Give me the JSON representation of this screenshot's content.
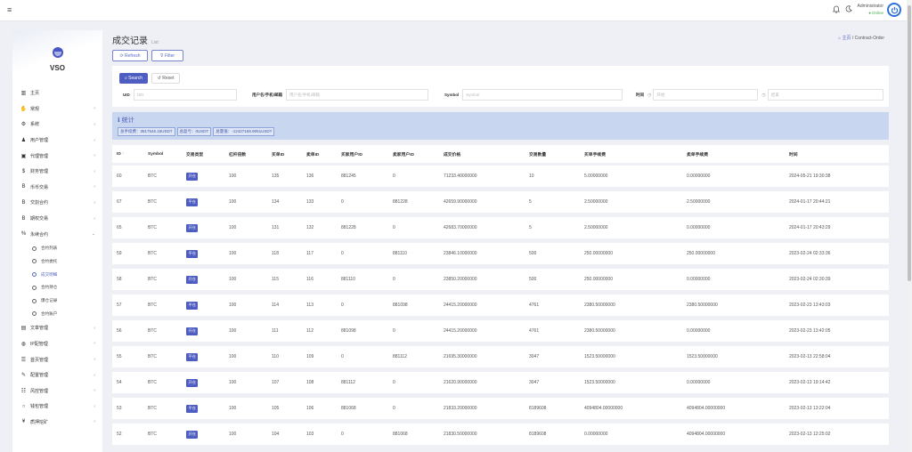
{
  "topbar": {
    "menu_icon": "menu-icon",
    "notifications_icon": "bell-icon",
    "theme_icon": "moon-icon",
    "user_name": "Administrator",
    "user_status": "Online",
    "avatar_icon": "power-icon"
  },
  "sidebar": {
    "logo_text": "VSO",
    "items": [
      {
        "label": "主页",
        "icon": "bar-chart-icon",
        "has_arrow": false
      },
      {
        "label": "常规",
        "icon": "handshake-icon",
        "has_arrow": true
      },
      {
        "label": "系统",
        "icon": "gear-icon",
        "has_arrow": true
      },
      {
        "label": "用户管理",
        "icon": "user-icon",
        "has_arrow": true
      },
      {
        "label": "代理管理",
        "icon": "id-card-icon",
        "has_arrow": true
      },
      {
        "label": "财务管理",
        "icon": "dollar-icon",
        "has_arrow": true
      },
      {
        "label": "币币交易",
        "icon": "bitcoin-icon",
        "has_arrow": true
      },
      {
        "label": "交割合约",
        "icon": "bitcoin-icon",
        "has_arrow": true
      },
      {
        "label": "期权交易",
        "icon": "bitcoin-icon",
        "has_arrow": true
      },
      {
        "label": "永续合约",
        "icon": "percent-icon",
        "has_arrow": true,
        "expanded": true
      }
    ],
    "subitems": [
      {
        "label": "合约列表",
        "active": false
      },
      {
        "label": "合约委托",
        "active": false
      },
      {
        "label": "成交明细",
        "active": true
      },
      {
        "label": "合约持仓",
        "active": false
      },
      {
        "label": "爆仓记录",
        "active": false
      },
      {
        "label": "合约账户",
        "active": false
      }
    ],
    "items_after": [
      {
        "label": "文章管理",
        "icon": "newspaper-icon",
        "has_arrow": true
      },
      {
        "label": "IP配管理",
        "icon": "globe-icon",
        "has_arrow": true
      },
      {
        "label": "首页管理",
        "icon": "list-icon",
        "has_arrow": true
      },
      {
        "label": "配置管理",
        "icon": "wrench-icon",
        "has_arrow": true
      },
      {
        "label": "风控管理",
        "icon": "sliders-icon",
        "has_arrow": true
      },
      {
        "label": "钱包管理",
        "icon": "circle-icon",
        "has_arrow": true
      },
      {
        "label": "质押挖矿",
        "icon": "yen-icon",
        "has_arrow": true
      }
    ]
  },
  "page": {
    "title": "成交记录",
    "subtitle": "List",
    "breadcrumb_home": "主页",
    "breadcrumb_separator": "/",
    "breadcrumb_current": "Contract-Order",
    "refresh_label": "Refresh",
    "filter_label": "Filter"
  },
  "search": {
    "search_label": "Search",
    "reset_label": "Reset",
    "fields": [
      {
        "label": "UID",
        "placeholder": "UID"
      },
      {
        "label": "用户名/手机/邮箱",
        "placeholder": "用户名/手机/邮箱"
      },
      {
        "label": "Symbol",
        "placeholder": "Symbol"
      },
      {
        "label": "时间",
        "placeholder": "开始",
        "placeholder_end": "结束"
      }
    ]
  },
  "stats": {
    "title": "统计",
    "items": [
      "总手续费：3817546.15USDT",
      "总盈亏：0USDT",
      "总量值：-12427168.9051USDT"
    ]
  },
  "table": {
    "columns": [
      "ID",
      "Symbol",
      "交易类型",
      "杠杆倍数",
      "买单ID",
      "卖单ID",
      "买家用户ID",
      "卖家用户ID",
      "成交价格",
      "交易数量",
      "买单手续费",
      "卖单手续费",
      "时间"
    ],
    "sort_indicator": "↑",
    "rows": [
      [
        "60",
        "BTC",
        "开仓",
        "100",
        "135",
        "136",
        "881245",
        "0",
        "71233.40000000",
        "10",
        "5.00000000",
        "0.00000000",
        "2024-05-21 19:30:38"
      ],
      [
        "67",
        "BTC",
        "平仓",
        "100",
        "134",
        "133",
        "0",
        "881228",
        "42659.90000000",
        "5",
        "2.50000000",
        "2.50000000",
        "2024-01-17 20:44:21"
      ],
      [
        "65",
        "BTC",
        "开仓",
        "100",
        "131",
        "132",
        "881228",
        "0",
        "42683.70000000",
        "5",
        "2.50000000",
        "0.00000000",
        "2024-01-17 20:43:29"
      ],
      [
        "59",
        "BTC",
        "平仓",
        "100",
        "118",
        "117",
        "0",
        "881110",
        "23846.10000000",
        "500",
        "250.00000000",
        "250.00000000",
        "2023-02-24 02:33:36"
      ],
      [
        "58",
        "BTC",
        "开仓",
        "100",
        "115",
        "116",
        "881110",
        "0",
        "23850.20000000",
        "500",
        "250.00000000",
        "0.00000000",
        "2023-02-24 02:30:39"
      ],
      [
        "57",
        "BTC",
        "平仓",
        "100",
        "114",
        "113",
        "0",
        "881098",
        "24415.20000000",
        "4761",
        "2380.50000000",
        "2380.50000000",
        "2023-02-23 13:43:03"
      ],
      [
        "56",
        "BTC",
        "开仓",
        "100",
        "111",
        "112",
        "881098",
        "0",
        "24415.20000000",
        "4761",
        "2380.50000000",
        "0.00000000",
        "2023-02-23 13:42:05"
      ],
      [
        "55",
        "BTC",
        "平仓",
        "100",
        "110",
        "109",
        "0",
        "881112",
        "21695.30000000",
        "3047",
        "1523.50000000",
        "1523.50000000",
        "2023-02-13 22:58:04"
      ],
      [
        "54",
        "BTC",
        "开仓",
        "100",
        "107",
        "108",
        "881112",
        "0",
        "21620.90000000",
        "3047",
        "1523.50000000",
        "0.00000000",
        "2023-02-13 19:14:42"
      ],
      [
        "53",
        "BTC",
        "平仓",
        "100",
        "105",
        "106",
        "881068",
        "0",
        "21833.20000000",
        "8189608",
        "4094804.00000000",
        "4094804.00000000",
        "2023-02-13 13:22:04"
      ],
      [
        "52",
        "BTC",
        "开仓",
        "100",
        "104",
        "103",
        "0",
        "881068",
        "21830.50000000",
        "8189608",
        "0.00000000",
        "4094804.00000000",
        "2023-02-13 12:25:02"
      ]
    ]
  }
}
